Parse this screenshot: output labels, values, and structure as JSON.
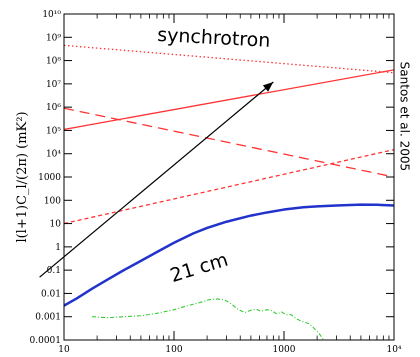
{
  "chart_data": {
    "type": "line",
    "xscale": "log",
    "yscale": "log",
    "xlim": [
      10,
      10000
    ],
    "ylim": [
      0.0001,
      10000000000
    ],
    "x_ticks": [
      {
        "value": 10,
        "label": "10"
      },
      {
        "value": 100,
        "label": "100"
      },
      {
        "value": 1000,
        "label": "1000"
      },
      {
        "value": 10000,
        "label": "10⁴"
      }
    ],
    "y_ticks": [
      {
        "value": 10000000000,
        "label": "10¹⁰"
      },
      {
        "value": 1000000000,
        "label": "10⁹"
      },
      {
        "value": 100000000,
        "label": "10⁸"
      },
      {
        "value": 10000000,
        "label": "10⁷"
      },
      {
        "value": 1000000,
        "label": "10⁶"
      },
      {
        "value": 100000,
        "label": "10⁵"
      },
      {
        "value": 10000,
        "label": "10⁴"
      },
      {
        "value": 1000,
        "label": "1000"
      },
      {
        "value": 100,
        "label": "100"
      },
      {
        "value": 10,
        "label": "10"
      },
      {
        "value": 1,
        "label": "1"
      },
      {
        "value": 0.1,
        "label": "0.1"
      },
      {
        "value": 0.01,
        "label": "0.01"
      },
      {
        "value": 0.001,
        "label": "0.001"
      },
      {
        "value": 0.0001,
        "label": "0.0001"
      }
    ],
    "ylabel": "l(l+1)C_l/(2π)  (mK²)",
    "xlabel": "",
    "title": "",
    "grid": false,
    "series": [
      {
        "key": "sync-dotted",
        "color": "#ff3333",
        "dash": "1.5,2.5",
        "width": 1.3,
        "x": [
          10,
          10000
        ],
        "y": [
          450000000,
          30000000
        ]
      },
      {
        "key": "sync-solid",
        "color": "#ff3333",
        "dash": "",
        "width": 1.3,
        "x": [
          10,
          10000
        ],
        "y": [
          110000,
          40000000
        ]
      },
      {
        "key": "long-dashed",
        "color": "#ff3333",
        "dash": "10,6",
        "width": 1.3,
        "x": [
          10,
          10000
        ],
        "y": [
          900000,
          1000
        ]
      },
      {
        "key": "short-dashed",
        "color": "#ff3333",
        "dash": "4,3",
        "width": 1.3,
        "x": [
          10,
          10000
        ],
        "y": [
          10,
          15000
        ]
      },
      {
        "key": "21cm",
        "color": "#2233cc",
        "dash": "",
        "width": 2.5,
        "x": [
          10,
          13,
          18,
          25,
          35,
          50,
          70,
          100,
          150,
          200,
          300,
          500,
          700,
          1000,
          1500,
          2000,
          3000,
          5000,
          7000,
          10000
        ],
        "y": [
          0.003,
          0.006,
          0.016,
          0.04,
          0.1,
          0.25,
          0.6,
          1.5,
          3.8,
          6.5,
          12,
          22,
          30,
          40,
          50,
          55,
          60,
          65,
          64,
          60
        ]
      },
      {
        "key": "green",
        "color": "#33cc33",
        "dash": "4,2,1,2",
        "width": 1.1,
        "x": [
          18,
          25,
          35,
          50,
          70,
          100,
          130,
          170,
          210,
          250,
          290,
          330,
          380,
          440,
          500,
          560,
          620,
          700,
          780,
          860,
          950,
          1050,
          1150,
          1300,
          1500,
          1700,
          1900,
          2100,
          2300
        ],
        "y": [
          0.001,
          0.0009,
          0.001,
          0.0011,
          0.0014,
          0.002,
          0.0029,
          0.004,
          0.0054,
          0.0058,
          0.0052,
          0.0036,
          0.0021,
          0.0015,
          0.0019,
          0.0021,
          0.0017,
          0.002,
          0.0018,
          0.0013,
          0.0016,
          0.0012,
          0.00125,
          0.0008,
          0.0006,
          0.0005,
          0.0003,
          0.00018,
          0.0001
        ]
      }
    ],
    "annotations": [
      {
        "key": "synchrotron",
        "text": "synchrotron",
        "x": 230,
        "y": 900000000,
        "size": 19,
        "rotate": 3
      },
      {
        "key": "21cm",
        "text": "21 cm",
        "x": 170,
        "y": 0.12,
        "size": 19,
        "rotate": -17
      },
      {
        "key": "credit",
        "text": "Santos et al. 2005",
        "x": 12300,
        "y": 400000,
        "size": 12,
        "rotate": 90
      }
    ],
    "arrow": {
      "x1": 6,
      "y1": 0.05,
      "x2": 800,
      "y2": 12000000
    }
  }
}
